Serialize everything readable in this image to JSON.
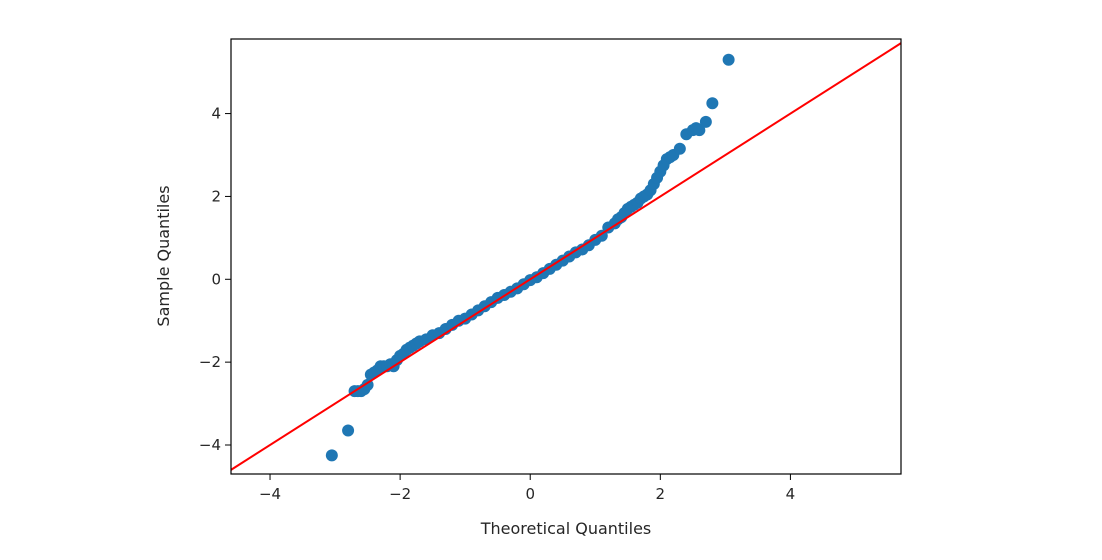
{
  "chart_data": {
    "type": "scatter",
    "title": "",
    "xlabel": "Theoretical Quantiles",
    "ylabel": "Sample Quantiles",
    "xlim": [
      -4.6,
      5.7
    ],
    "ylim": [
      -4.7,
      5.8
    ],
    "xticks": [
      -4,
      -2,
      0,
      2,
      4
    ],
    "yticks": [
      -4,
      -2,
      0,
      2,
      4
    ],
    "xtick_labels": [
      "−4",
      "−2",
      "0",
      "2",
      "4"
    ],
    "ytick_labels": [
      "−4",
      "−2",
      "0",
      "2",
      "4"
    ],
    "grid": false,
    "legend": "none",
    "marker_color": "#1f77b4",
    "reference_line": {
      "color": "#ff0000",
      "slope": 1.0,
      "intercept": 0.0
    },
    "series": [
      {
        "x": [
          -3.05,
          -2.8,
          -2.7,
          -2.65,
          -2.6,
          -2.55,
          -2.5,
          -2.45,
          -2.4,
          -2.35,
          -2.3,
          -2.25,
          -2.2,
          -2.15,
          -2.1,
          -2.05,
          -2.0,
          -1.95,
          -1.9,
          -1.85,
          -1.8,
          -1.75,
          -1.7,
          -1.6,
          -1.5,
          -1.4,
          -1.3,
          -1.2,
          -1.1,
          -1.0,
          -0.9,
          -0.8,
          -0.7,
          -0.6,
          -0.5,
          -0.4,
          -0.3,
          -0.2,
          -0.1,
          0.0,
          0.1,
          0.2,
          0.3,
          0.4,
          0.5,
          0.6,
          0.7,
          0.8,
          0.9,
          1.0,
          1.1,
          1.2,
          1.3,
          1.35,
          1.4,
          1.45,
          1.5,
          1.55,
          1.6,
          1.65,
          1.7,
          1.75,
          1.8,
          1.85,
          1.9,
          1.95,
          2.0,
          2.05,
          2.1,
          2.15,
          2.2,
          2.3,
          2.4,
          2.5,
          2.55,
          2.6,
          2.7,
          2.8,
          3.05
        ],
        "y": [
          -4.25,
          -3.65,
          -2.7,
          -2.7,
          -2.7,
          -2.65,
          -2.55,
          -2.3,
          -2.25,
          -2.2,
          -2.1,
          -2.1,
          -2.1,
          -2.05,
          -2.1,
          -1.95,
          -1.85,
          -1.8,
          -1.7,
          -1.65,
          -1.6,
          -1.55,
          -1.5,
          -1.45,
          -1.35,
          -1.3,
          -1.2,
          -1.1,
          -1.0,
          -0.95,
          -0.85,
          -0.75,
          -0.65,
          -0.55,
          -0.45,
          -0.38,
          -0.3,
          -0.22,
          -0.12,
          -0.02,
          0.05,
          0.15,
          0.25,
          0.35,
          0.45,
          0.55,
          0.65,
          0.72,
          0.82,
          0.95,
          1.05,
          1.25,
          1.35,
          1.45,
          1.5,
          1.6,
          1.7,
          1.75,
          1.8,
          1.85,
          1.95,
          2.0,
          2.05,
          2.15,
          2.3,
          2.45,
          2.6,
          2.75,
          2.9,
          2.95,
          3.0,
          3.15,
          3.5,
          3.6,
          3.65,
          3.6,
          3.8,
          4.25,
          5.3
        ]
      }
    ]
  }
}
